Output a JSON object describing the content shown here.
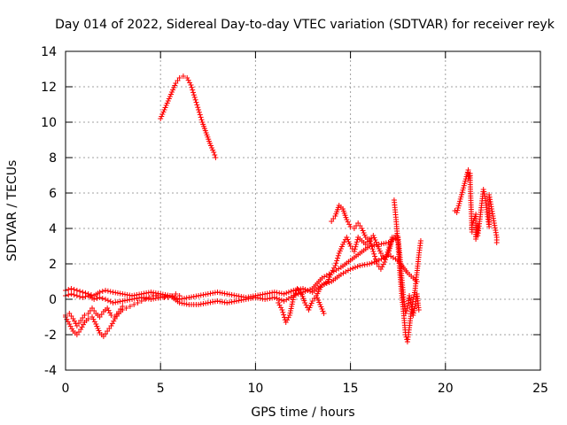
{
  "chart_data": {
    "type": "scatter",
    "title": "Day 014 of 2022, Sidereal Day-to-day VTEC variation (SDTVAR) for receiver reyk",
    "xlabel": "GPS time / hours",
    "ylabel": "SDTVAR / TECUs",
    "xlim": [
      0,
      25
    ],
    "ylim": [
      -4,
      14
    ],
    "xticks": [
      0,
      5,
      10,
      15,
      20,
      25
    ],
    "yticks": [
      -4,
      -2,
      0,
      2,
      4,
      6,
      8,
      10,
      12,
      14
    ],
    "grid": true,
    "marker": "+",
    "series": [
      {
        "name": "SDTVAR",
        "color": "#ff0000",
        "segments": [
          {
            "x": [
              0.0,
              0.3,
              0.6,
              0.9,
              1.2,
              1.5,
              1.8,
              2.1,
              2.5,
              3.0,
              3.5,
              4.0,
              4.5,
              5.0,
              5.5,
              6.0,
              6.5,
              7.0,
              7.5,
              8.0,
              8.5,
              9.0,
              9.5,
              10.0,
              10.5,
              11.0,
              11.5,
              12.0,
              12.5,
              13.0,
              13.5,
              14.0,
              14.5,
              15.0,
              15.5,
              16.0,
              16.5,
              17.0,
              17.5,
              18.0,
              18.5
            ],
            "y": [
              0.5,
              0.6,
              0.5,
              0.4,
              0.3,
              0.2,
              0.4,
              0.5,
              0.4,
              0.3,
              0.2,
              0.3,
              0.4,
              0.3,
              0.2,
              0.0,
              0.1,
              0.2,
              0.3,
              0.4,
              0.3,
              0.2,
              0.1,
              0.2,
              0.3,
              0.4,
              0.3,
              0.5,
              0.6,
              0.4,
              0.8,
              1.0,
              1.4,
              1.7,
              1.9,
              2.0,
              2.2,
              2.5,
              2.2,
              1.5,
              1.0
            ]
          },
          {
            "x": [
              0.0,
              0.3,
              0.6,
              0.9,
              1.2,
              1.5,
              1.8,
              2.1,
              2.5,
              3.0,
              3.5,
              4.0,
              4.5,
              5.0,
              5.5,
              6.0,
              6.5,
              7.0,
              7.5,
              8.0,
              8.5,
              9.0,
              9.5,
              10.0,
              10.5,
              11.0,
              11.5,
              12.0,
              12.5,
              13.0,
              13.5,
              14.0,
              14.5,
              15.0,
              15.5,
              16.0,
              16.5,
              17.0,
              17.5
            ],
            "y": [
              0.2,
              0.3,
              0.2,
              0.1,
              0.2,
              0.0,
              0.1,
              0.0,
              -0.2,
              -0.1,
              0.0,
              0.1,
              0.0,
              0.1,
              0.2,
              -0.2,
              -0.3,
              -0.3,
              -0.2,
              -0.1,
              -0.2,
              -0.1,
              0.0,
              0.1,
              0.0,
              0.1,
              -0.1,
              0.2,
              0.4,
              0.6,
              1.2,
              1.5,
              1.8,
              2.2,
              2.6,
              3.0,
              3.1,
              3.2,
              3.5
            ]
          },
          {
            "x": [
              0.0,
              0.2,
              0.4,
              0.6,
              0.8,
              1.0,
              1.2,
              1.4,
              1.6,
              1.8,
              2.0,
              2.2,
              2.4,
              2.6,
              2.8,
              3.0,
              3.2,
              3.4,
              3.6,
              3.8,
              4.0,
              4.2,
              4.4,
              4.6,
              4.8,
              5.0,
              5.2,
              5.4,
              5.6,
              5.8,
              6.0
            ],
            "y": [
              -1.0,
              -1.4,
              -1.8,
              -2.0,
              -1.7,
              -1.3,
              -1.1,
              -1.0,
              -1.4,
              -1.9,
              -2.1,
              -1.8,
              -1.5,
              -1.1,
              -0.8,
              -0.6,
              -0.5,
              -0.4,
              -0.3,
              -0.2,
              -0.1,
              0.0,
              0.1,
              0.2,
              0.2,
              0.2,
              0.1,
              0.1,
              0.2,
              0.3,
              0.2
            ]
          },
          {
            "x": [
              0.0,
              0.2,
              0.4,
              0.6,
              0.8,
              1.0,
              1.2,
              1.4,
              1.6,
              1.8,
              2.0,
              2.2,
              2.4,
              2.6,
              2.8,
              3.0
            ],
            "y": [
              -0.9,
              -0.8,
              -1.1,
              -1.5,
              -1.2,
              -0.9,
              -0.8,
              -0.5,
              -0.8,
              -1.0,
              -0.7,
              -0.5,
              -0.9,
              -1.0,
              -0.7,
              -0.4
            ]
          },
          {
            "x": [
              5.0,
              5.2,
              5.4,
              5.6,
              5.8,
              6.0,
              6.2,
              6.4,
              6.6,
              6.8,
              7.0,
              7.2,
              7.4,
              7.6,
              7.8,
              7.9
            ],
            "y": [
              10.2,
              10.7,
              11.2,
              11.7,
              12.2,
              12.5,
              12.6,
              12.5,
              12.1,
              11.4,
              10.7,
              10.0,
              9.4,
              8.8,
              8.3,
              8.0
            ]
          },
          {
            "x": [
              11.2,
              11.4,
              11.6,
              11.8,
              12.0,
              12.2,
              12.4,
              12.6,
              12.8,
              13.0,
              13.2,
              13.4,
              13.6
            ],
            "y": [
              -0.2,
              -0.6,
              -1.3,
              -0.9,
              0.1,
              0.6,
              0.4,
              -0.2,
              -0.6,
              -0.1,
              0.2,
              -0.3,
              -0.8
            ]
          },
          {
            "x": [
              13.2,
              13.5,
              13.8,
              14.0,
              14.2,
              14.4,
              14.6,
              14.8,
              15.0,
              15.2,
              15.4,
              15.6,
              15.8,
              16.0,
              16.2,
              16.4,
              16.6,
              16.8,
              17.0,
              17.2
            ],
            "y": [
              0.2,
              0.8,
              1.0,
              1.5,
              1.9,
              2.6,
              3.1,
              3.5,
              3.0,
              2.7,
              3.5,
              3.3,
              3.1,
              3.4,
              2.7,
              2.0,
              1.7,
              2.1,
              2.8,
              3.5
            ]
          },
          {
            "x": [
              14.0,
              14.2,
              14.4,
              14.6,
              14.8,
              15.0,
              15.2,
              15.4,
              15.6,
              15.8,
              16.0,
              16.2,
              16.4,
              16.6,
              16.8,
              17.0,
              17.2,
              17.4
            ],
            "y": [
              4.4,
              4.7,
              5.3,
              5.1,
              4.5,
              4.1,
              4.0,
              4.3,
              4.0,
              3.5,
              3.3,
              3.6,
              3.1,
              2.6,
              2.3,
              2.6,
              3.4,
              3.6
            ]
          },
          {
            "x": [
              17.3,
              17.4,
              17.5,
              17.6,
              17.7,
              17.8,
              17.9,
              18.0,
              18.1,
              18.2,
              18.3,
              18.4,
              18.5,
              18.6,
              18.7
            ],
            "y": [
              5.6,
              4.5,
              3.2,
              1.5,
              0.2,
              -0.8,
              -2.0,
              -2.4,
              -1.6,
              -0.7,
              0.0,
              0.5,
              1.5,
              2.5,
              3.3
            ]
          },
          {
            "x": [
              17.5,
              17.6,
              17.7,
              17.8,
              17.9,
              18.0,
              18.1,
              18.2,
              18.3,
              18.4,
              18.5,
              18.6
            ],
            "y": [
              3.5,
              2.5,
              1.2,
              0.0,
              -0.8,
              -0.5,
              0.2,
              -0.3,
              -0.9,
              -0.4,
              0.3,
              -0.6
            ]
          },
          {
            "x": [
              20.5,
              20.6,
              21.2,
              21.2,
              21.3,
              21.3,
              21.4,
              21.4,
              21.6,
              21.6,
              21.7,
              21.7,
              21.8,
              22.0,
              22.1,
              22.2,
              22.3,
              22.3,
              22.5,
              22.7,
              22.7
            ],
            "y": [
              5.0,
              4.9,
              7.3,
              6.8,
              7.1,
              6.6,
              3.8,
              4.2,
              4.8,
              3.4,
              4.2,
              3.6,
              4.4,
              6.2,
              5.7,
              4.8,
              4.1,
              5.9,
              4.7,
              3.5,
              3.2
            ]
          }
        ]
      }
    ]
  }
}
